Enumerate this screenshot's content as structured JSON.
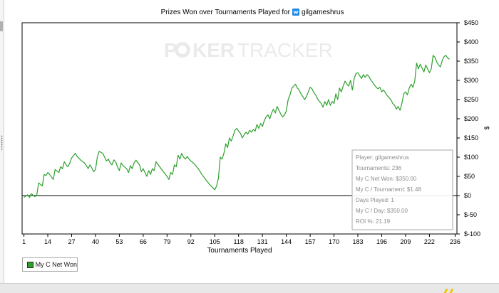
{
  "chart_data": {
    "type": "line",
    "title_prefix": "Prizes Won over Tournaments Played for",
    "player_name": "gilgameshrus",
    "xlabel": "Tournaments Played",
    "ylabel": "$",
    "x_ticks": [
      1,
      14,
      27,
      40,
      53,
      66,
      79,
      92,
      105,
      118,
      131,
      144,
      157,
      170,
      183,
      196,
      209,
      222,
      236
    ],
    "y_ticks": [
      -100,
      -50,
      0,
      50,
      100,
      150,
      200,
      250,
      300,
      350,
      400,
      450
    ],
    "y_tick_labels": [
      "$-100",
      "$-50",
      "$0",
      "$50",
      "$100",
      "$150",
      "$200",
      "$250",
      "$300",
      "$350",
      "$400",
      "$450"
    ],
    "xlim": [
      0,
      237
    ],
    "ylim": [
      -100,
      450
    ],
    "grid": false,
    "legend": "bottom-left",
    "series": [
      {
        "name": "My C Net Won",
        "color": "#2ca02c",
        "points": [
          [
            1,
            -5
          ],
          [
            3,
            2
          ],
          [
            4,
            -5
          ],
          [
            5,
            5
          ],
          [
            7,
            -3
          ],
          [
            8,
            2
          ],
          [
            9,
            33
          ],
          [
            11,
            25
          ],
          [
            12,
            55
          ],
          [
            13,
            52
          ],
          [
            14,
            60
          ],
          [
            15,
            55
          ],
          [
            17,
            42
          ],
          [
            18,
            68
          ],
          [
            20,
            60
          ],
          [
            21,
            75
          ],
          [
            22,
            70
          ],
          [
            23,
            88
          ],
          [
            24,
            80
          ],
          [
            25,
            75
          ],
          [
            26,
            85
          ],
          [
            27,
            98
          ],
          [
            29,
            110
          ],
          [
            30,
            102
          ],
          [
            32,
            92
          ],
          [
            34,
            85
          ],
          [
            35,
            78
          ],
          [
            36,
            70
          ],
          [
            37,
            80
          ],
          [
            38,
            72
          ],
          [
            39,
            62
          ],
          [
            40,
            68
          ],
          [
            41,
            100
          ],
          [
            42,
            115
          ],
          [
            44,
            110
          ],
          [
            45,
            100
          ],
          [
            46,
            90
          ],
          [
            47,
            95
          ],
          [
            48,
            85
          ],
          [
            49,
            80
          ],
          [
            50,
            93
          ],
          [
            51,
            88
          ],
          [
            52,
            75
          ],
          [
            53,
            65
          ],
          [
            54,
            85
          ],
          [
            55,
            78
          ],
          [
            57,
            70
          ],
          [
            58,
            60
          ],
          [
            59,
            78
          ],
          [
            60,
            70
          ],
          [
            61,
            85
          ],
          [
            62,
            92
          ],
          [
            64,
            80
          ],
          [
            65,
            62
          ],
          [
            66,
            70
          ],
          [
            67,
            60
          ],
          [
            68,
            50
          ],
          [
            69,
            65
          ],
          [
            70,
            55
          ],
          [
            71,
            70
          ],
          [
            72,
            65
          ],
          [
            73,
            88
          ],
          [
            75,
            75
          ],
          [
            77,
            62
          ],
          [
            79,
            50
          ],
          [
            80,
            42
          ],
          [
            81,
            60
          ],
          [
            82,
            55
          ],
          [
            83,
            80
          ],
          [
            84,
            75
          ],
          [
            85,
            105
          ],
          [
            86,
            95
          ],
          [
            87,
            110
          ],
          [
            88,
            100
          ],
          [
            89,
            95
          ],
          [
            90,
            102
          ],
          [
            91,
            95
          ],
          [
            92,
            90
          ],
          [
            94,
            82
          ],
          [
            96,
            70
          ],
          [
            98,
            55
          ],
          [
            100,
            42
          ],
          [
            102,
            30
          ],
          [
            104,
            20
          ],
          [
            105,
            15
          ],
          [
            106,
            25
          ],
          [
            107,
            45
          ],
          [
            108,
            100
          ],
          [
            109,
            95
          ],
          [
            110,
            110
          ],
          [
            111,
            135
          ],
          [
            112,
            125
          ],
          [
            113,
            150
          ],
          [
            114,
            142
          ],
          [
            115,
            155
          ],
          [
            116,
            170
          ],
          [
            117,
            175
          ],
          [
            118,
            168
          ],
          [
            119,
            162
          ],
          [
            120,
            150
          ],
          [
            121,
            158
          ],
          [
            122,
            165
          ],
          [
            123,
            160
          ],
          [
            124,
            170
          ],
          [
            125,
            165
          ],
          [
            126,
            172
          ],
          [
            127,
            168
          ],
          [
            128,
            185
          ],
          [
            129,
            175
          ],
          [
            130,
            188
          ],
          [
            131,
            180
          ],
          [
            132,
            195
          ],
          [
            133,
            205
          ],
          [
            134,
            210
          ],
          [
            135,
            200
          ],
          [
            136,
            215
          ],
          [
            137,
            225
          ],
          [
            138,
            215
          ],
          [
            139,
            232
          ],
          [
            140,
            222
          ],
          [
            141,
            212
          ],
          [
            142,
            205
          ],
          [
            143,
            210
          ],
          [
            144,
            220
          ],
          [
            145,
            250
          ],
          [
            146,
            262
          ],
          [
            147,
            280
          ],
          [
            148,
            285
          ],
          [
            149,
            290
          ],
          [
            150,
            280
          ],
          [
            151,
            275
          ],
          [
            152,
            265
          ],
          [
            153,
            258
          ],
          [
            154,
            250
          ],
          [
            155,
            258
          ],
          [
            156,
            270
          ],
          [
            157,
            282
          ],
          [
            158,
            278
          ],
          [
            159,
            268
          ],
          [
            160,
            262
          ],
          [
            161,
            252
          ],
          [
            162,
            245
          ],
          [
            163,
            240
          ],
          [
            164,
            230
          ],
          [
            165,
            245
          ],
          [
            166,
            235
          ],
          [
            167,
            250
          ],
          [
            168,
            235
          ],
          [
            169,
            245
          ],
          [
            170,
            240
          ],
          [
            171,
            265
          ],
          [
            172,
            250
          ],
          [
            173,
            280
          ],
          [
            174,
            270
          ],
          [
            175,
            285
          ],
          [
            176,
            298
          ],
          [
            177,
            290
          ],
          [
            178,
            285
          ],
          [
            179,
            300
          ],
          [
            180,
            275
          ],
          [
            181,
            305
          ],
          [
            182,
            318
          ],
          [
            183,
            320
          ],
          [
            184,
            312
          ],
          [
            185,
            305
          ],
          [
            186,
            315
          ],
          [
            187,
            308
          ],
          [
            188,
            315
          ],
          [
            189,
            310
          ],
          [
            190,
            302
          ],
          [
            191,
            295
          ],
          [
            192,
            288
          ],
          [
            193,
            282
          ],
          [
            194,
            278
          ],
          [
            195,
            282
          ],
          [
            196,
            270
          ],
          [
            197,
            275
          ],
          [
            198,
            268
          ],
          [
            199,
            260
          ],
          [
            200,
            255
          ],
          [
            201,
            250
          ],
          [
            202,
            240
          ],
          [
            203,
            235
          ],
          [
            204,
            225
          ],
          [
            205,
            232
          ],
          [
            206,
            222
          ],
          [
            207,
            240
          ],
          [
            208,
            265
          ],
          [
            209,
            270
          ],
          [
            210,
            262
          ],
          [
            211,
            280
          ],
          [
            212,
            290
          ],
          [
            213,
            282
          ],
          [
            214,
            298
          ],
          [
            215,
            345
          ],
          [
            216,
            330
          ],
          [
            217,
            342
          ],
          [
            218,
            332
          ],
          [
            219,
            322
          ],
          [
            220,
            340
          ],
          [
            221,
            330
          ],
          [
            222,
            320
          ],
          [
            223,
            330
          ],
          [
            224,
            365
          ],
          [
            225,
            360
          ],
          [
            226,
            348
          ],
          [
            227,
            340
          ],
          [
            228,
            335
          ],
          [
            229,
            352
          ],
          [
            230,
            362
          ],
          [
            231,
            365
          ],
          [
            232,
            358
          ],
          [
            233,
            355
          ]
        ]
      }
    ],
    "watermark": {
      "left": "P",
      "middle": "KER",
      "right": "TRACKER"
    },
    "tooltip": [
      "Player: gilgameshrus",
      "Tournaments: 236",
      "My C Net Won: $350.00",
      "My C / Tournament: $1.48",
      "Days Played: 1",
      "My C / Day: $350.00",
      "ROI %: 21.19"
    ]
  },
  "legend": {
    "label": "My C Net Won"
  },
  "colors": {
    "series": "#2ca02c",
    "axis": "#000000",
    "tooltip_border": "#a8a8a8",
    "tooltip_text": "#8c8c8c",
    "title_icon": "#1e88e5"
  },
  "icons": {
    "title_icon": "site-logo-icon"
  }
}
